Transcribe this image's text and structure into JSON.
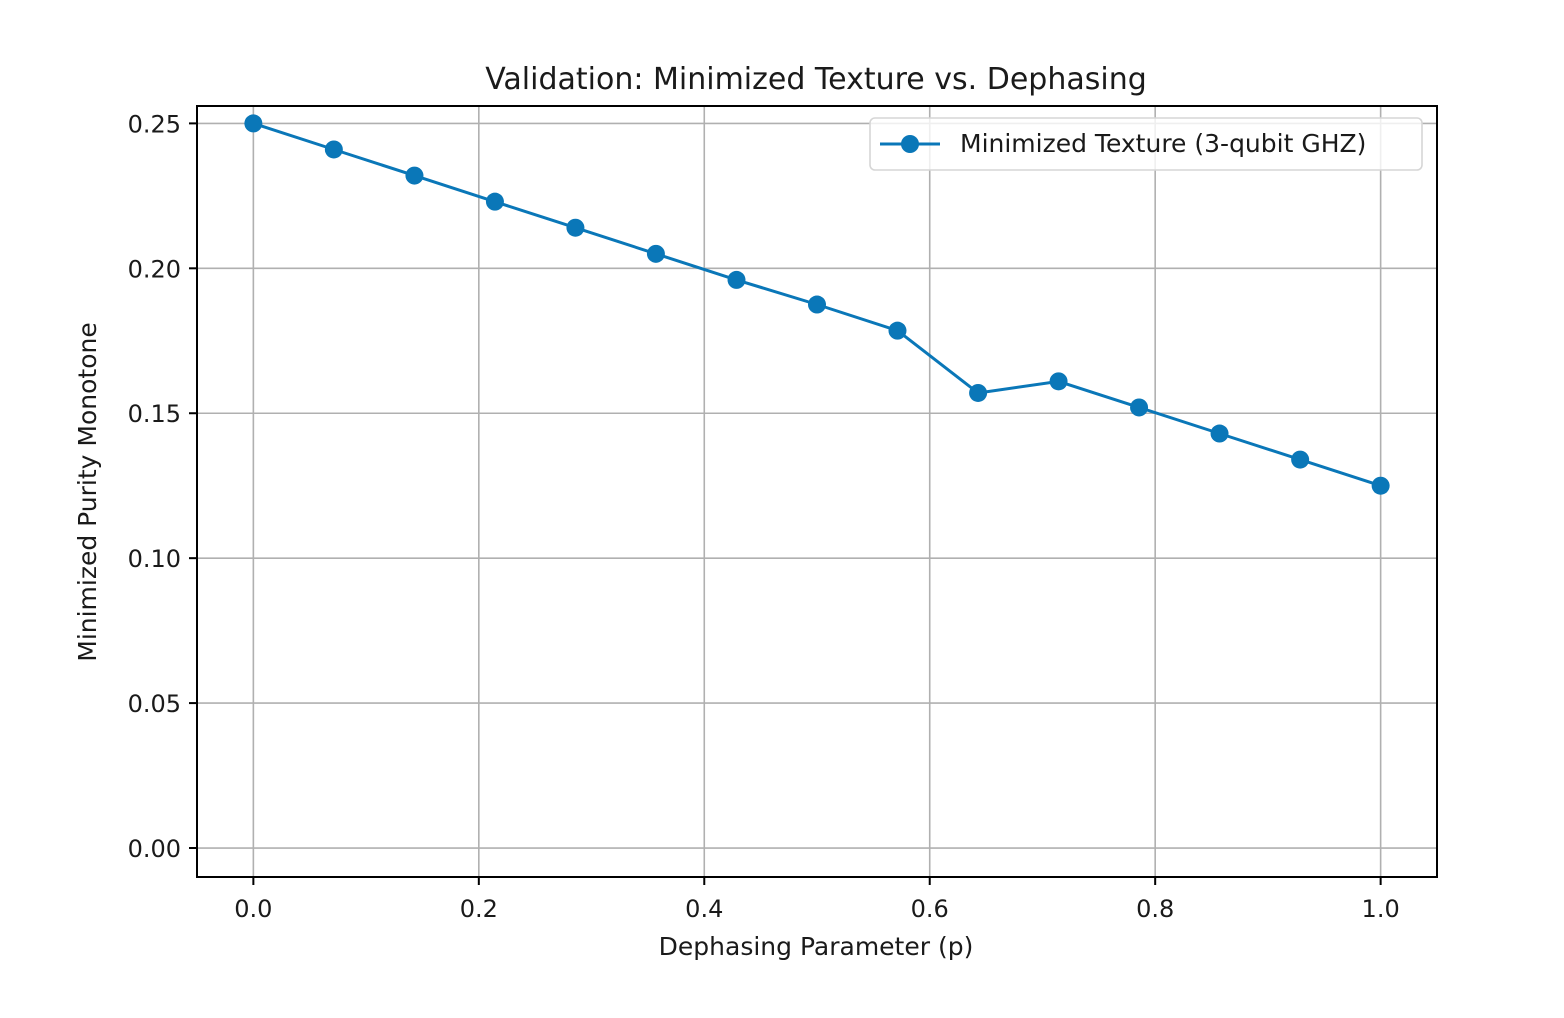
{
  "chart_data": {
    "type": "line",
    "title": "Validation: Minimized Texture vs. Dephasing",
    "xlabel": "Dephasing Parameter (p)",
    "ylabel": "Minimized Purity Monotone",
    "xlim": [
      -0.05,
      1.05
    ],
    "ylim": [
      -0.01,
      0.256
    ],
    "xticks": [
      "0.0",
      "0.2",
      "0.4",
      "0.6",
      "0.8",
      "1.0"
    ],
    "yticks": [
      "0.00",
      "0.05",
      "0.10",
      "0.15",
      "0.20",
      "0.25"
    ],
    "grid": true,
    "legend_position": "top-right",
    "series": [
      {
        "name": "Minimized Texture (3-qubit GHZ)",
        "color": "#0a77b8",
        "marker": "circle",
        "x": [
          0.0,
          0.0714,
          0.1429,
          0.2143,
          0.2857,
          0.3571,
          0.4286,
          0.5,
          0.5714,
          0.6429,
          0.7143,
          0.7857,
          0.8571,
          0.9286,
          1.0
        ],
        "y": [
          0.25,
          0.241,
          0.232,
          0.223,
          0.214,
          0.205,
          0.196,
          0.1875,
          0.1785,
          0.157,
          0.161,
          0.152,
          0.143,
          0.134,
          0.125
        ]
      }
    ]
  }
}
